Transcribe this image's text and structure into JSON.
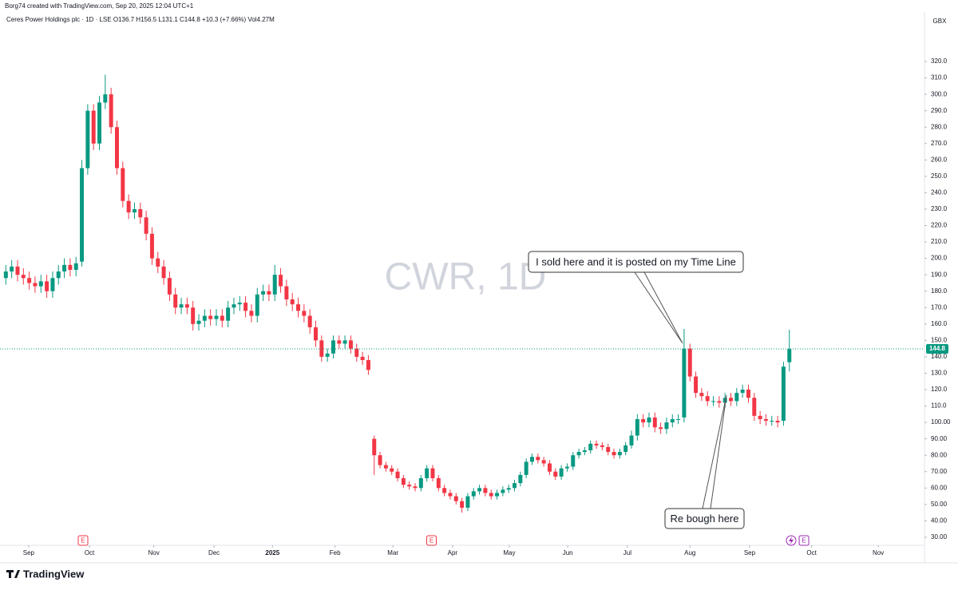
{
  "header": "Borg74 created with TradingView.com, Sep 20, 2025 12:04 UTC+1",
  "brand": "TradingView",
  "chart_data": {
    "type": "candlestick",
    "legend": "Ceres Power Holdings plc · 1D · LSE  O136.7  H156.5  L131.1  C144.8  +10.3 (+7.66%)  Vol4.27M",
    "watermark": "CWR, 1D",
    "currency": "GBX",
    "up_color": "#089981",
    "down_color": "#f23645",
    "x": [
      0,
      1,
      2,
      3,
      4,
      5,
      6,
      7,
      8,
      9,
      10,
      11,
      12,
      13,
      14,
      15,
      16,
      17,
      18,
      19,
      20,
      21,
      22,
      23,
      24,
      25,
      26,
      27,
      28,
      29,
      30,
      31,
      32,
      33,
      34,
      35,
      36,
      37,
      38,
      39,
      40,
      41,
      42,
      43,
      44,
      45,
      46,
      47,
      48,
      49,
      50,
      51,
      52,
      53,
      54,
      55,
      56,
      57,
      58,
      59,
      60,
      61,
      62,
      63,
      64,
      65,
      66,
      67,
      68,
      69,
      70,
      71,
      72,
      73,
      74,
      75,
      76,
      77,
      78,
      79,
      80,
      81,
      82,
      83,
      84,
      85,
      86,
      87,
      88,
      89,
      90,
      91,
      92,
      93,
      94,
      95,
      96,
      97,
      98,
      99,
      100,
      101,
      102,
      103,
      104,
      105,
      106,
      107,
      108,
      109,
      110,
      111,
      112,
      113,
      114,
      115,
      116,
      117,
      118,
      119,
      120,
      121,
      122,
      123,
      124,
      125,
      126,
      127,
      128,
      129,
      130,
      131,
      132,
      133,
      134
    ],
    "open": [
      188,
      192,
      195,
      190,
      188,
      185,
      183,
      186,
      180,
      188,
      192,
      196,
      193,
      198,
      255,
      290,
      270,
      295,
      300,
      280,
      255,
      235,
      228,
      230,
      225,
      215,
      200,
      195,
      188,
      178,
      170,
      172,
      170,
      160,
      162,
      165,
      163,
      165,
      162,
      170,
      172,
      173,
      168,
      165,
      178,
      180,
      178,
      190,
      183,
      175,
      172,
      168,
      165,
      158,
      150,
      140,
      142,
      150,
      148,
      150,
      145,
      140,
      138,
      90,
      80,
      74,
      72,
      70,
      66,
      62,
      61,
      60,
      66,
      72,
      66,
      60,
      57,
      55,
      52,
      48,
      55,
      58,
      60,
      57,
      55,
      57,
      59,
      60,
      63,
      68,
      76,
      79,
      77,
      75,
      70,
      67,
      72,
      73,
      80,
      82,
      83,
      87,
      86,
      85,
      82,
      80,
      82,
      86,
      92,
      102,
      100,
      103,
      97,
      96,
      100,
      102,
      103,
      145,
      128,
      118,
      116,
      113,
      113,
      112,
      115,
      113,
      118,
      120,
      115,
      104,
      102,
      101,
      101,
      101,
      136.7
    ],
    "high": [
      196,
      199,
      199,
      194,
      192,
      189,
      190,
      190,
      192,
      196,
      200,
      200,
      201,
      260,
      294,
      294,
      299,
      312,
      304,
      284,
      259,
      239,
      234,
      234,
      229,
      219,
      204,
      199,
      192,
      182,
      176,
      176,
      174,
      166,
      169,
      169,
      169,
      169,
      174,
      176,
      177,
      177,
      172,
      182,
      184,
      184,
      196,
      194,
      187,
      179,
      176,
      172,
      169,
      162,
      153,
      145,
      153,
      153,
      153,
      153,
      148,
      143,
      141,
      92,
      82,
      76,
      74,
      72,
      68,
      64,
      63,
      68,
      74,
      74,
      68,
      62,
      59,
      57,
      54,
      57,
      60,
      62,
      62,
      59,
      59,
      61,
      62,
      65,
      70,
      78,
      81,
      81,
      79,
      77,
      72,
      74,
      75,
      82,
      84,
      85,
      89,
      89,
      88,
      87,
      84,
      84,
      88,
      95,
      105,
      105,
      106,
      106,
      100,
      103,
      105,
      105,
      157,
      148,
      131,
      121,
      119,
      116,
      116,
      118,
      118,
      121,
      123,
      123,
      118,
      107,
      105,
      104,
      104,
      137,
      156.5
    ],
    "low": [
      184,
      188,
      186,
      184,
      181,
      179,
      179,
      176,
      176,
      184,
      188,
      189,
      189,
      195,
      251,
      266,
      266,
      291,
      276,
      251,
      231,
      224,
      224,
      221,
      211,
      196,
      191,
      184,
      174,
      166,
      166,
      166,
      156,
      156,
      158,
      159,
      159,
      158,
      158,
      166,
      168,
      164,
      161,
      161,
      174,
      174,
      174,
      179,
      171,
      168,
      164,
      161,
      154,
      146,
      137,
      137,
      139,
      145,
      145,
      142,
      137,
      135,
      129,
      68,
      72,
      70,
      68,
      64,
      60,
      59,
      58,
      58,
      64,
      64,
      58,
      55,
      53,
      50,
      45,
      46,
      53,
      56,
      55,
      53,
      53,
      55,
      57,
      58,
      61,
      66,
      74,
      75,
      73,
      68,
      65,
      65,
      70,
      71,
      78,
      80,
      81,
      84,
      83,
      80,
      78,
      78,
      80,
      84,
      89,
      97,
      97,
      94,
      93,
      93,
      97,
      99,
      100,
      125,
      115,
      113,
      110,
      110,
      109,
      109,
      110,
      110,
      115,
      112,
      101,
      99,
      98,
      98,
      97,
      98,
      131.1
    ],
    "close": [
      192,
      195,
      190,
      188,
      185,
      183,
      186,
      180,
      188,
      192,
      196,
      193,
      197,
      255,
      290,
      270,
      295,
      300,
      280,
      255,
      235,
      228,
      230,
      225,
      215,
      200,
      195,
      188,
      178,
      170,
      172,
      170,
      160,
      162,
      165,
      163,
      165,
      162,
      170,
      172,
      173,
      168,
      165,
      178,
      180,
      178,
      190,
      183,
      175,
      172,
      168,
      165,
      158,
      150,
      140,
      142,
      150,
      148,
      150,
      145,
      140,
      138,
      132,
      80,
      74,
      72,
      70,
      66,
      62,
      61,
      60,
      66,
      72,
      66,
      60,
      57,
      55,
      52,
      48,
      55,
      58,
      60,
      57,
      55,
      57,
      59,
      60,
      63,
      68,
      76,
      79,
      77,
      75,
      70,
      67,
      72,
      73,
      80,
      82,
      83,
      87,
      86,
      85,
      82,
      80,
      82,
      86,
      92,
      102,
      100,
      103,
      97,
      96,
      100,
      102,
      102,
      145,
      128,
      118,
      116,
      113,
      113,
      112,
      115,
      113,
      118,
      120,
      115,
      104,
      102,
      101,
      101,
      100,
      134,
      144.8
    ],
    "xlim": [
      -1,
      156.7
    ],
    "xticks": [
      {
        "value": 3.9,
        "label": "Sep"
      },
      {
        "value": 14.3,
        "label": "Oct"
      },
      {
        "value": 25.3,
        "label": "Nov"
      },
      {
        "value": 35.6,
        "label": "Dec"
      },
      {
        "value": 45.6,
        "label": "2025"
      },
      {
        "value": 56.3,
        "label": "Feb"
      },
      {
        "value": 66.2,
        "label": "Mar"
      },
      {
        "value": 76.4,
        "label": "Apr"
      },
      {
        "value": 86.1,
        "label": "May"
      },
      {
        "value": 96.1,
        "label": "Jun"
      },
      {
        "value": 106.3,
        "label": "Jul"
      },
      {
        "value": 117.0,
        "label": "Aug"
      },
      {
        "value": 127.2,
        "label": "Sep"
      },
      {
        "value": 137.8,
        "label": "Oct"
      },
      {
        "value": 149.2,
        "label": "Nov"
      }
    ],
    "ylim": [
      25.1,
      350.2
    ],
    "yticks": [
      {
        "value": 30,
        "label": "30.00"
      },
      {
        "value": 40,
        "label": "40.00"
      },
      {
        "value": 50,
        "label": "50.00"
      },
      {
        "value": 60,
        "label": "60.00"
      },
      {
        "value": 70,
        "label": "70.00"
      },
      {
        "value": 80,
        "label": "80.00"
      },
      {
        "value": 90,
        "label": "90.00"
      },
      {
        "value": 100,
        "label": "100.00"
      },
      {
        "value": 110,
        "label": "110.0"
      },
      {
        "value": 120,
        "label": "120.0"
      },
      {
        "value": 130,
        "label": "130.0"
      },
      {
        "value": 140,
        "label": "140.0"
      },
      {
        "value": 150,
        "label": "150.0"
      },
      {
        "value": 160,
        "label": "160.0"
      },
      {
        "value": 170,
        "label": "170.0"
      },
      {
        "value": 180,
        "label": "180.0"
      },
      {
        "value": 190,
        "label": "190.0"
      },
      {
        "value": 200,
        "label": "200.0"
      },
      {
        "value": 210,
        "label": "210.0"
      },
      {
        "value": 220,
        "label": "220.0"
      },
      {
        "value": 230,
        "label": "230.0"
      },
      {
        "value": 240,
        "label": "240.0"
      },
      {
        "value": 250,
        "label": "250.0"
      },
      {
        "value": 260,
        "label": "260.0"
      },
      {
        "value": 270,
        "label": "270.0"
      },
      {
        "value": 280,
        "label": "280.0"
      },
      {
        "value": 290,
        "label": "290.0"
      },
      {
        "value": 300,
        "label": "300.0"
      },
      {
        "value": 310,
        "label": "310.0"
      },
      {
        "value": 320,
        "label": "320.0"
      }
    ],
    "earnings_markers": [
      {
        "x": 13.2,
        "label": "E"
      },
      {
        "x": 72.8,
        "label": "E"
      },
      {
        "x": 136.5,
        "label": "E"
      }
    ],
    "annotations": [
      {
        "text": "I sold here and it is posted on my Time Line"
      },
      {
        "text": "Re bough here"
      }
    ]
  }
}
